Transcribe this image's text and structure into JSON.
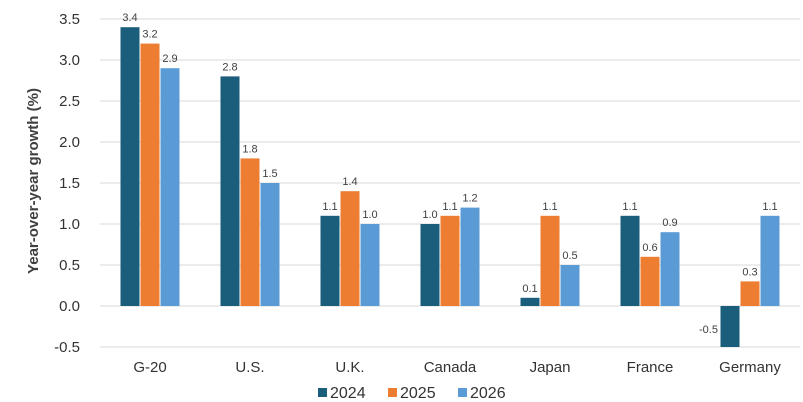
{
  "chart_data": {
    "type": "bar",
    "title": "",
    "xlabel": "",
    "ylabel": "Year-over-year growth (%)",
    "ylim": [
      -0.5,
      3.5
    ],
    "yticks": [
      "3.5",
      "3.0",
      "2.5",
      "2.0",
      "1.5",
      "1.0",
      "0.5",
      "0.0",
      "-0.5"
    ],
    "grid": true,
    "legend_position": "bottom",
    "categories": [
      "G-20",
      "U.S.",
      "U.K.",
      "Canada",
      "Japan",
      "France",
      "Germany"
    ],
    "series": [
      {
        "name": "2024",
        "color": "#1b5e7b",
        "values": [
          3.4,
          2.8,
          1.1,
          1.0,
          0.1,
          1.1,
          -0.5
        ],
        "labels": [
          "3.4",
          "2.8",
          "1.1",
          "1.0",
          "0.1",
          "1.1",
          "-0.5"
        ]
      },
      {
        "name": "2025",
        "color": "#ed7d31",
        "values": [
          3.2,
          1.8,
          1.4,
          1.1,
          1.1,
          0.6,
          0.3
        ],
        "labels": [
          "3.2",
          "1.8",
          "1.4",
          "1.1",
          "1.1",
          "0.6",
          "0.3"
        ]
      },
      {
        "name": "2026",
        "color": "#5b9bd5",
        "values": [
          2.9,
          1.5,
          1.0,
          1.2,
          0.5,
          0.9,
          1.1
        ],
        "labels": [
          "2.9",
          "1.5",
          "1.0",
          "1.2",
          "0.5",
          "0.9",
          "1.1"
        ]
      }
    ]
  }
}
